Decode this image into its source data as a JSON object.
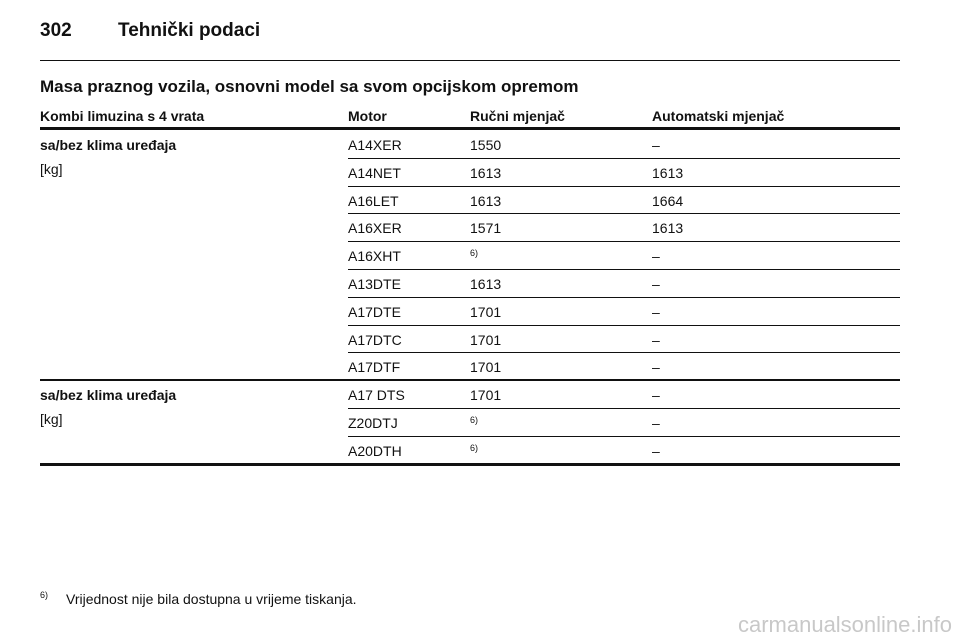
{
  "header": {
    "page_number": "302",
    "title": "Tehnički podaci"
  },
  "section_title": "Masa praznog vozila, osnovni model sa svom opcijskom opremom",
  "table": {
    "columns": [
      "Kombi limuzina s 4 vrata",
      "Motor",
      "Ručni mjenjač",
      "Automatski mjenjač"
    ],
    "groups": [
      {
        "label": "sa/bez klima uređaja",
        "unit": "[kg]",
        "rows": [
          [
            "A14XER",
            "1550",
            "–"
          ],
          [
            "A14NET",
            "1613",
            "1613"
          ],
          [
            "A16LET",
            "1613",
            "1664"
          ],
          [
            "A16XER",
            "1571",
            "1613"
          ],
          [
            "A16XHT",
            "6)",
            "–"
          ],
          [
            "A13DTE",
            "1613",
            "–"
          ],
          [
            "A17DTE",
            "1701",
            "–"
          ],
          [
            "A17DTC",
            "1701",
            "–"
          ],
          [
            "A17DTF",
            "1701",
            "–"
          ]
        ]
      },
      {
        "label": "sa/bez klima uređaja",
        "unit": "[kg]",
        "rows": [
          [
            "A17 DTS",
            "1701",
            "–"
          ],
          [
            "Z20DTJ",
            "6)",
            "–"
          ],
          [
            "A20DTH",
            "6)",
            "–"
          ]
        ]
      }
    ]
  },
  "footnote": {
    "marker": "6)",
    "text": "Vrijednost nije bila dostupna u vrijeme tiskanja."
  },
  "watermark": "carmanualsonline.info"
}
